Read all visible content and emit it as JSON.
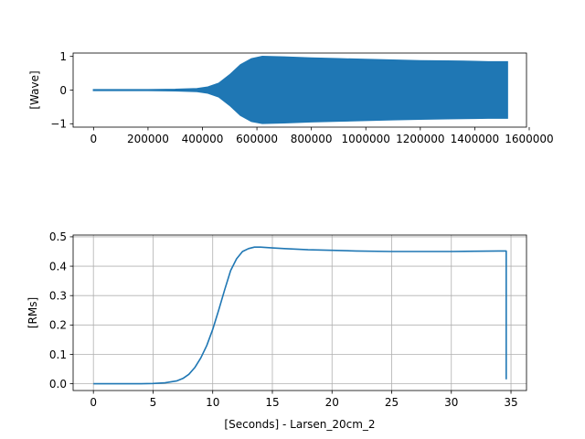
{
  "chart_data": [
    {
      "type": "area",
      "description": "Waveform amplitude envelope (filled band between +/- envelope)",
      "ylabel": "[Wave]",
      "xlabel": "",
      "xlim": [
        -75000,
        1590000
      ],
      "ylim": [
        -1.1,
        1.1
      ],
      "x_ticks": [
        0,
        200000,
        400000,
        600000,
        800000,
        1000000,
        1200000,
        1400000,
        1600000
      ],
      "x_tick_labels": [
        "0",
        "200000",
        "400000",
        "600000",
        "800000",
        "1000000",
        "1200000",
        "1400000",
        "1600000"
      ],
      "y_ticks": [
        -1,
        0,
        1
      ],
      "y_tick_labels": [
        "−1",
        "0",
        "1"
      ],
      "grid": false,
      "color": "#1f77b4",
      "envelope": {
        "x": [
          0,
          200000,
          300000,
          380000,
          420000,
          460000,
          500000,
          540000,
          580000,
          620000,
          700000,
          800000,
          900000,
          1000000,
          1100000,
          1200000,
          1300000,
          1400000,
          1450000,
          1520000
        ],
        "upper": [
          0.01,
          0.01,
          0.02,
          0.04,
          0.09,
          0.2,
          0.45,
          0.75,
          0.93,
          1.0,
          0.98,
          0.95,
          0.93,
          0.91,
          0.89,
          0.87,
          0.86,
          0.85,
          0.84,
          0.84
        ],
        "lower": [
          -0.01,
          -0.01,
          -0.02,
          -0.04,
          -0.09,
          -0.2,
          -0.45,
          -0.75,
          -0.93,
          -0.99,
          -0.97,
          -0.94,
          -0.92,
          -0.9,
          -0.88,
          -0.86,
          -0.85,
          -0.84,
          -0.83,
          -0.83
        ]
      }
    },
    {
      "type": "line",
      "ylabel": "[RMs]",
      "xlabel": "[Seconds] - Larsen_20cm_2",
      "xlim": [
        -1.7,
        36.3
      ],
      "ylim": [
        -0.023,
        0.506
      ],
      "x_ticks": [
        0,
        5,
        10,
        15,
        20,
        25,
        30,
        35
      ],
      "x_tick_labels": [
        "0",
        "5",
        "10",
        "15",
        "20",
        "25",
        "30",
        "35"
      ],
      "y_ticks": [
        0.0,
        0.1,
        0.2,
        0.3,
        0.4,
        0.5
      ],
      "y_tick_labels": [
        "0.0",
        "0.1",
        "0.2",
        "0.3",
        "0.4",
        "0.5"
      ],
      "grid": true,
      "color": "#1f77b4",
      "x": [
        0,
        2,
        4,
        5,
        6,
        7,
        7.5,
        8,
        8.5,
        9,
        9.5,
        10,
        10.5,
        11,
        11.5,
        12,
        12.5,
        13,
        13.5,
        14,
        15,
        16,
        17,
        18,
        20,
        22,
        25,
        28,
        30,
        32,
        34,
        34.5,
        34.6,
        34.6
      ],
      "y": [
        0.0,
        0.0,
        0.0,
        0.001,
        0.003,
        0.01,
        0.018,
        0.032,
        0.055,
        0.088,
        0.13,
        0.185,
        0.25,
        0.32,
        0.385,
        0.425,
        0.45,
        0.46,
        0.465,
        0.465,
        0.462,
        0.46,
        0.458,
        0.456,
        0.454,
        0.452,
        0.45,
        0.45,
        0.45,
        0.451,
        0.452,
        0.452,
        0.452,
        0.015
      ]
    }
  ]
}
